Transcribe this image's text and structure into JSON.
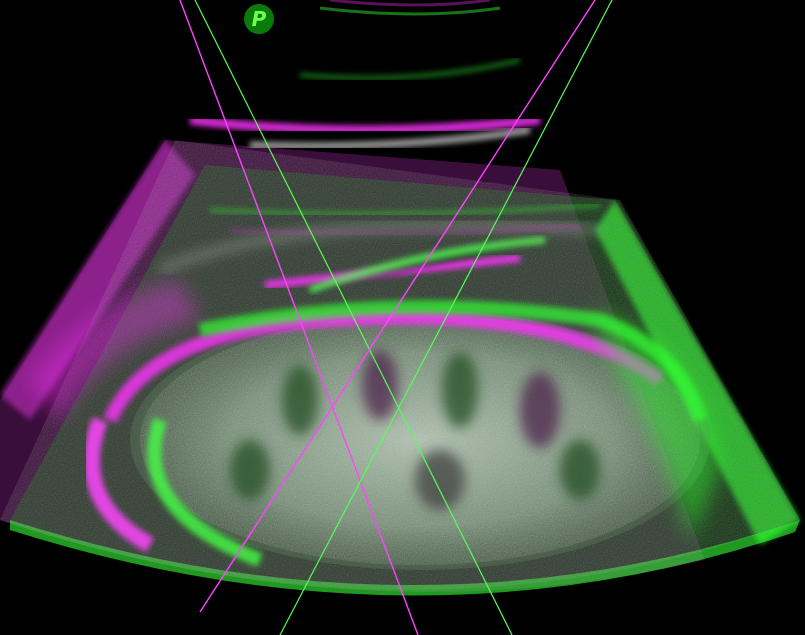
{
  "image": {
    "description_type": "fused ultrasound overlay",
    "colors": {
      "background": "#000000",
      "green_channel": "#22ff33",
      "magenta_channel": "#ff33ff",
      "marker_fill": "#0a7a0a",
      "marker_text": "#6dff4a"
    }
  },
  "probe_marker": {
    "label": "P",
    "icon": "probe-orientation-icon"
  },
  "guides": [
    {
      "channel": "magenta",
      "name": "needle-guide-magenta-left"
    },
    {
      "channel": "green",
      "name": "needle-guide-green-left"
    },
    {
      "channel": "magenta",
      "name": "needle-guide-magenta-right"
    },
    {
      "channel": "green",
      "name": "needle-guide-green-right"
    }
  ]
}
